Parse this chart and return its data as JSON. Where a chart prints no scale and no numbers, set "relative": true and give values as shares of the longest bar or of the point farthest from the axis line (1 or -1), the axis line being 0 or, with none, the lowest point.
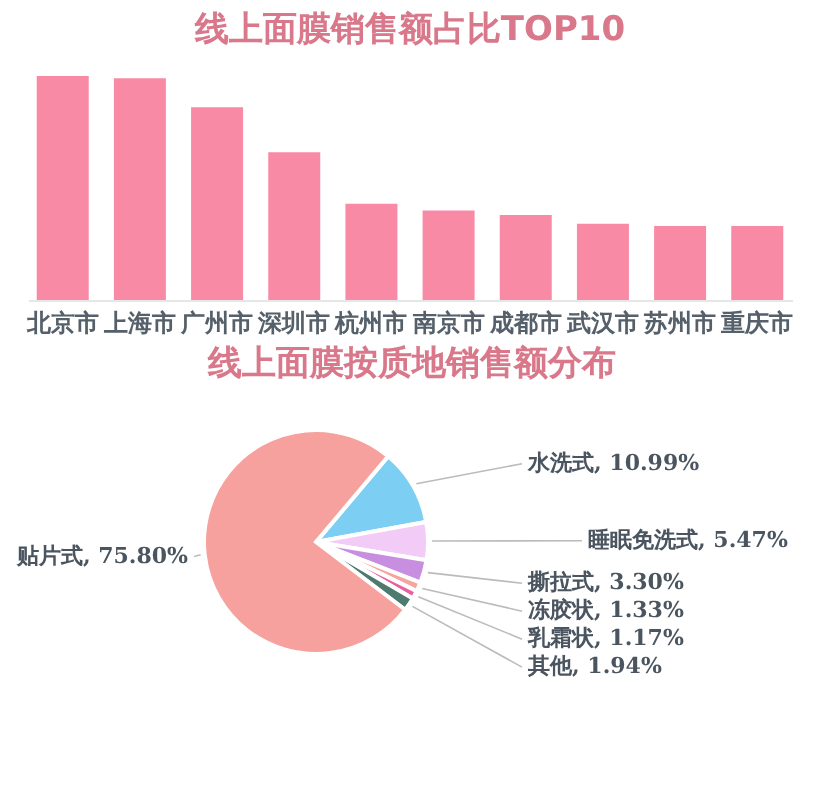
{
  "chart_data": [
    {
      "type": "bar",
      "title": "线上面膜销售额占比TOP10",
      "relative": true,
      "categories": [
        "北京市",
        "上海市",
        "广州市",
        "深圳市",
        "杭州市",
        "南京市",
        "成都市",
        "武汉市",
        "苏州市",
        "重庆市"
      ],
      "values": [
        1,
        0.99,
        0.86,
        0.66,
        0.43,
        0.4,
        0.38,
        0.34,
        0.33,
        0.33
      ],
      "color": "#f98aa5"
    },
    {
      "type": "pie",
      "title": "线上面膜按质地销售额分布",
      "categories": [
        "水洗式",
        "睡眠免洗式",
        "撕拉式",
        "冻胶状",
        "乳霜状",
        "其他",
        "贴片式"
      ],
      "values": [
        10.99,
        5.47,
        3.3,
        1.33,
        1.17,
        1.94,
        75.8
      ],
      "value_labels": [
        "10.99%",
        "5.47%",
        "3.30%",
        "1.33%",
        "1.17%",
        "1.94%",
        "75.80%"
      ],
      "colors": [
        "#7ccff2",
        "#f2cbf6",
        "#c88fe0",
        "#f5a49e",
        "#e8609e",
        "#4e7a70",
        "#f6a19d"
      ]
    }
  ]
}
